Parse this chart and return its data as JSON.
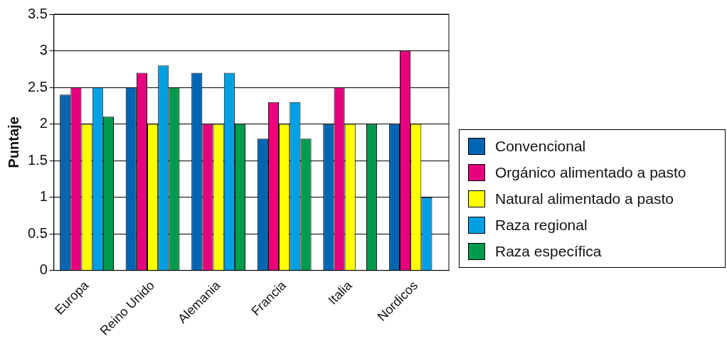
{
  "chart_data": {
    "type": "bar",
    "ylabel": "Puntaje",
    "categories": [
      "Europa",
      "Reino Unido",
      "Alemania",
      "Francia",
      "Italia",
      "Nordicos"
    ],
    "series": [
      {
        "name": "Convencional",
        "color": "#0066b3",
        "values": [
          2.4,
          2.5,
          2.7,
          1.8,
          2.0,
          2.0
        ]
      },
      {
        "name": "Orgánico alimentado a pasto",
        "color": "#e6007e",
        "values": [
          2.5,
          2.7,
          2.0,
          2.3,
          2.5,
          3.0
        ]
      },
      {
        "name": "Natural alimentado a pasto",
        "color": "#ffff00",
        "values": [
          2.0,
          2.0,
          2.0,
          2.0,
          2.0,
          2.0
        ]
      },
      {
        "name": "Raza regional",
        "color": "#00a0e3",
        "values": [
          2.5,
          2.8,
          2.7,
          2.3,
          null,
          1.0
        ]
      },
      {
        "name": "Raza específica",
        "color": "#009a4e",
        "values": [
          2.1,
          2.5,
          2.0,
          1.8,
          2.0,
          null
        ]
      }
    ],
    "ylim": [
      0,
      3.5
    ],
    "yticks": [
      0,
      0.5,
      1,
      1.5,
      2,
      2.5,
      3,
      3.5
    ],
    "grid": "y",
    "legend": "right"
  }
}
